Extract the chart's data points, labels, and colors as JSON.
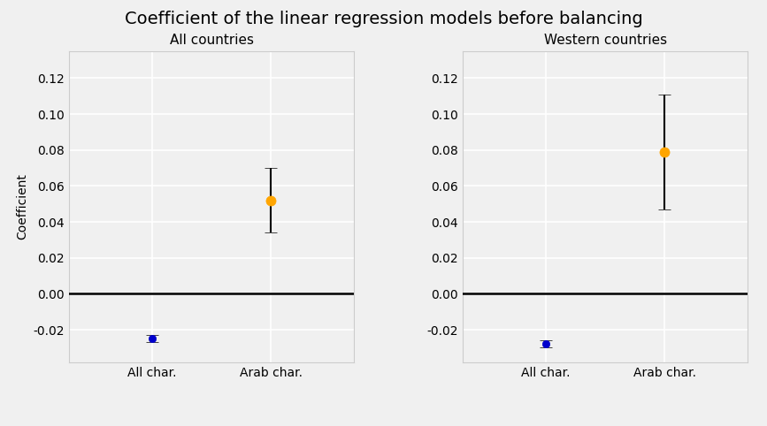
{
  "title": "Coefficient of the linear regression models before balancing",
  "subplot_titles": [
    "All countries",
    "Western countries"
  ],
  "categories": [
    "All char.",
    "Arab char."
  ],
  "panels": [
    {
      "values": [
        -0.025,
        0.052
      ],
      "yerr_low": [
        0.002,
        0.018
      ],
      "yerr_high": [
        0.002,
        0.018
      ],
      "colors": [
        "#0000cc",
        "#ffa500"
      ]
    },
    {
      "values": [
        -0.028,
        0.079
      ],
      "yerr_low": [
        0.002,
        0.032
      ],
      "yerr_high": [
        0.002,
        0.032
      ],
      "colors": [
        "#0000cc",
        "#ffa500"
      ]
    }
  ],
  "ylabel": "Coefficient",
  "ylim": [
    -0.038,
    0.135
  ],
  "yticks": [
    -0.02,
    0.0,
    0.02,
    0.04,
    0.06,
    0.08,
    0.1,
    0.12
  ],
  "hline_y": 0.0,
  "background_color": "#f0f0f0",
  "grid_color": "#ffffff",
  "title_fontsize": 14,
  "subtitle_fontsize": 11,
  "label_fontsize": 10,
  "tick_fontsize": 10
}
